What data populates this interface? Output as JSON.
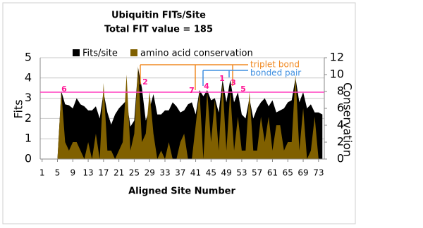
{
  "chart_data": {
    "type": "area",
    "title": "Ubiquitin FITs/Site",
    "subtitle": "Total FIT value = 185",
    "x_label": "Aligned Site Number",
    "y_label": "Fits",
    "y2_label": "Conservation",
    "x": [
      1,
      2,
      3,
      4,
      5,
      6,
      7,
      8,
      9,
      10,
      11,
      12,
      13,
      14,
      15,
      16,
      17,
      18,
      19,
      20,
      21,
      22,
      23,
      24,
      25,
      26,
      27,
      28,
      29,
      30,
      31,
      32,
      33,
      34,
      35,
      36,
      37,
      38,
      39,
      40,
      41,
      42,
      43,
      44,
      45,
      46,
      47,
      48,
      49,
      50,
      51,
      52,
      53,
      54,
      55,
      56,
      57,
      58,
      59,
      60,
      61,
      62,
      63,
      64,
      65,
      66,
      67,
      68,
      69,
      70,
      71,
      72,
      73,
      74
    ],
    "xlim": [
      0.5,
      74.5
    ],
    "xticks": [
      1,
      5,
      9,
      13,
      17,
      21,
      25,
      29,
      33,
      37,
      41,
      45,
      49,
      53,
      57,
      61,
      65,
      69,
      73
    ],
    "ylim": [
      0,
      5
    ],
    "yticks": [
      0,
      1,
      2,
      3,
      4,
      5
    ],
    "y2lim": [
      0,
      12
    ],
    "y2ticks": [
      0,
      2,
      4,
      6,
      8,
      10,
      12
    ],
    "grid": true,
    "series": [
      {
        "name": "Fits/site",
        "color": "#000000",
        "values": [
          0,
          0,
          0,
          0,
          0,
          3.35,
          2.7,
          2.65,
          2.5,
          3.0,
          2.7,
          2.6,
          2.4,
          2.4,
          2.6,
          2.0,
          3.3,
          2.3,
          1.7,
          2.2,
          2.5,
          2.7,
          2.9,
          1.6,
          1.9,
          4.5,
          3.5,
          1.9,
          2.5,
          3.2,
          2.2,
          2.2,
          2.4,
          2.4,
          2.8,
          2.6,
          2.3,
          2.4,
          2.7,
          2.8,
          2.2,
          3.4,
          3.1,
          3.4,
          2.9,
          3.0,
          2.3,
          3.9,
          2.8,
          3.9,
          2.8,
          3.3,
          2.2,
          2.0,
          3.0,
          2.0,
          2.5,
          2.8,
          3.0,
          2.6,
          2.9,
          2.3,
          2.4,
          2.5,
          2.8,
          2.9,
          4.0,
          2.8,
          3.3,
          2.5,
          2.7,
          2.3,
          2.3,
          2.2
        ]
      },
      {
        "name": "amino acid conservation",
        "color": "#806000",
        "axis": "y2",
        "values": [
          0,
          0,
          0,
          0,
          0,
          8,
          2,
          1,
          2,
          2,
          1,
          0,
          2,
          0,
          3,
          0,
          9,
          1,
          1,
          0,
          1,
          2,
          10,
          1,
          3,
          11,
          2,
          3,
          8,
          3,
          0,
          1,
          0,
          2,
          0,
          0,
          2,
          3,
          0,
          0,
          4,
          8,
          0,
          8,
          2,
          7,
          1,
          9,
          1,
          8,
          1,
          5,
          1,
          1,
          8,
          1,
          1,
          5,
          2,
          5,
          1,
          4,
          4,
          1,
          2,
          2,
          10,
          1,
          6,
          0,
          1,
          5,
          0,
          0
        ]
      }
    ],
    "threshold": 3.3,
    "threshold_color": "#ff3fbf",
    "brackets": [
      {
        "label": "triplet bond",
        "color": "#f08a24"
      },
      {
        "label": "bonded pair",
        "color": "#3f8fe0"
      }
    ],
    "annotations": [
      "6",
      "2",
      "7",
      "4",
      "1",
      "3",
      "5"
    ]
  }
}
